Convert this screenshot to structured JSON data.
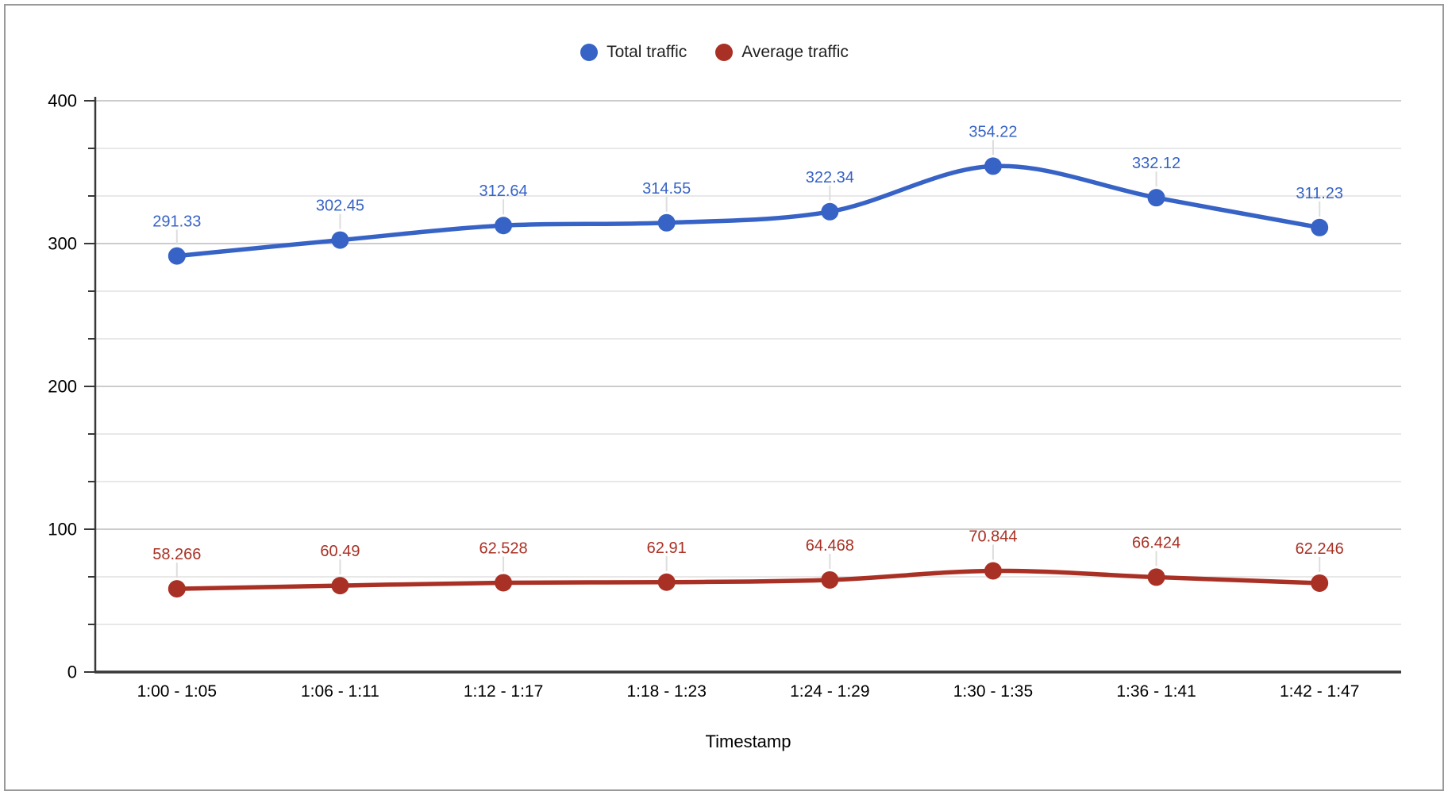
{
  "chart_data": {
    "type": "line",
    "smooth": true,
    "grid": true,
    "legend_position": "top",
    "xlabel": "Timestamp",
    "ylabel": "",
    "ylim": [
      0,
      400
    ],
    "y_major_step": 100,
    "minor_gridlines_per_major": 3,
    "y_major_ticks": [
      0,
      100,
      200,
      300,
      400
    ],
    "y_tick_labels": [
      "0",
      "100",
      "200",
      "300",
      "400"
    ],
    "categories": [
      "1:00 - 1:05",
      "1:06 - 1:11",
      "1:12 - 1:17",
      "1:18 - 1:23",
      "1:24 - 1:29",
      "1:30 - 1:35",
      "1:36 - 1:41",
      "1:42 - 1:47"
    ],
    "series": [
      {
        "name": "Total traffic",
        "color": "#3763C6",
        "values": [
          291.33,
          302.45,
          312.64,
          314.55,
          322.34,
          354.22,
          332.12,
          311.23
        ],
        "labels": [
          "291.33",
          "302.45",
          "312.64",
          "314.55",
          "322.34",
          "354.22",
          "332.12",
          "311.23"
        ]
      },
      {
        "name": "Average traffic",
        "color": "#A93024",
        "values": [
          58.266,
          60.49,
          62.528,
          62.91,
          64.468,
          70.844,
          66.424,
          62.246
        ],
        "labels": [
          "58.266",
          "60.49",
          "62.528",
          "62.91",
          "64.468",
          "70.844",
          "66.424",
          "62.246"
        ]
      }
    ]
  },
  "colors": {
    "grid_major": "#CCCCCC",
    "grid_minor": "#E8E8E8",
    "axis": "#383838",
    "leader": "#DDDDDD",
    "text": "#000000",
    "legend_text": "#1F1F1F",
    "frame_border": "#999999"
  }
}
